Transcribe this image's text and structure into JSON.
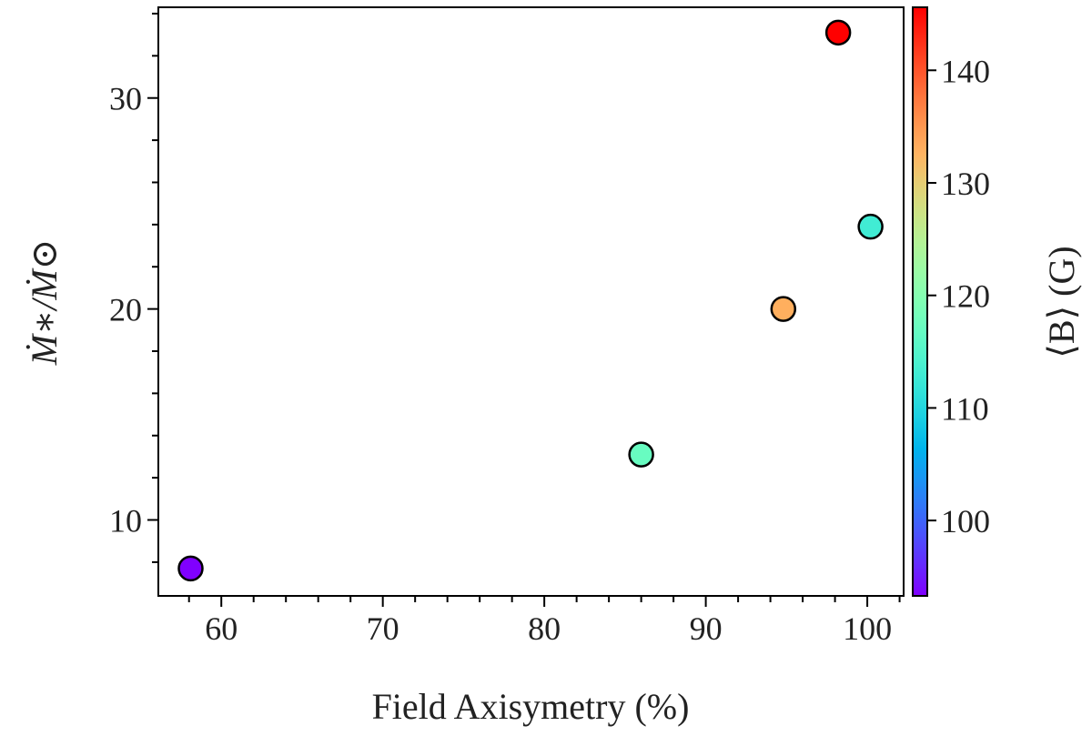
{
  "chart_data": {
    "type": "scatter",
    "title": "",
    "xlabel": "Field Axisymetry (%)",
    "ylabel": "Ṁ∗/Ṁ⊙",
    "xlim": [
      56.1,
      102.25
    ],
    "ylim": [
      6.4,
      34.3
    ],
    "xticks": [
      60,
      70,
      80,
      90,
      100
    ],
    "yticks": [
      10,
      20,
      30
    ],
    "grid": false,
    "colorbar": {
      "label": "⟨B⟩ (G)",
      "colormap": "rainbow",
      "range": [
        93.3,
        145.6
      ],
      "ticks": [
        100,
        110,
        120,
        130,
        140
      ]
    },
    "points": [
      {
        "x": 58.1,
        "y": 7.7,
        "c": 93.3
      },
      {
        "x": 86.0,
        "y": 13.1,
        "c": 117
      },
      {
        "x": 94.8,
        "y": 20.0,
        "c": 133
      },
      {
        "x": 100.2,
        "y": 23.9,
        "c": 113
      },
      {
        "x": 98.2,
        "y": 33.1,
        "c": 145.6
      }
    ]
  }
}
